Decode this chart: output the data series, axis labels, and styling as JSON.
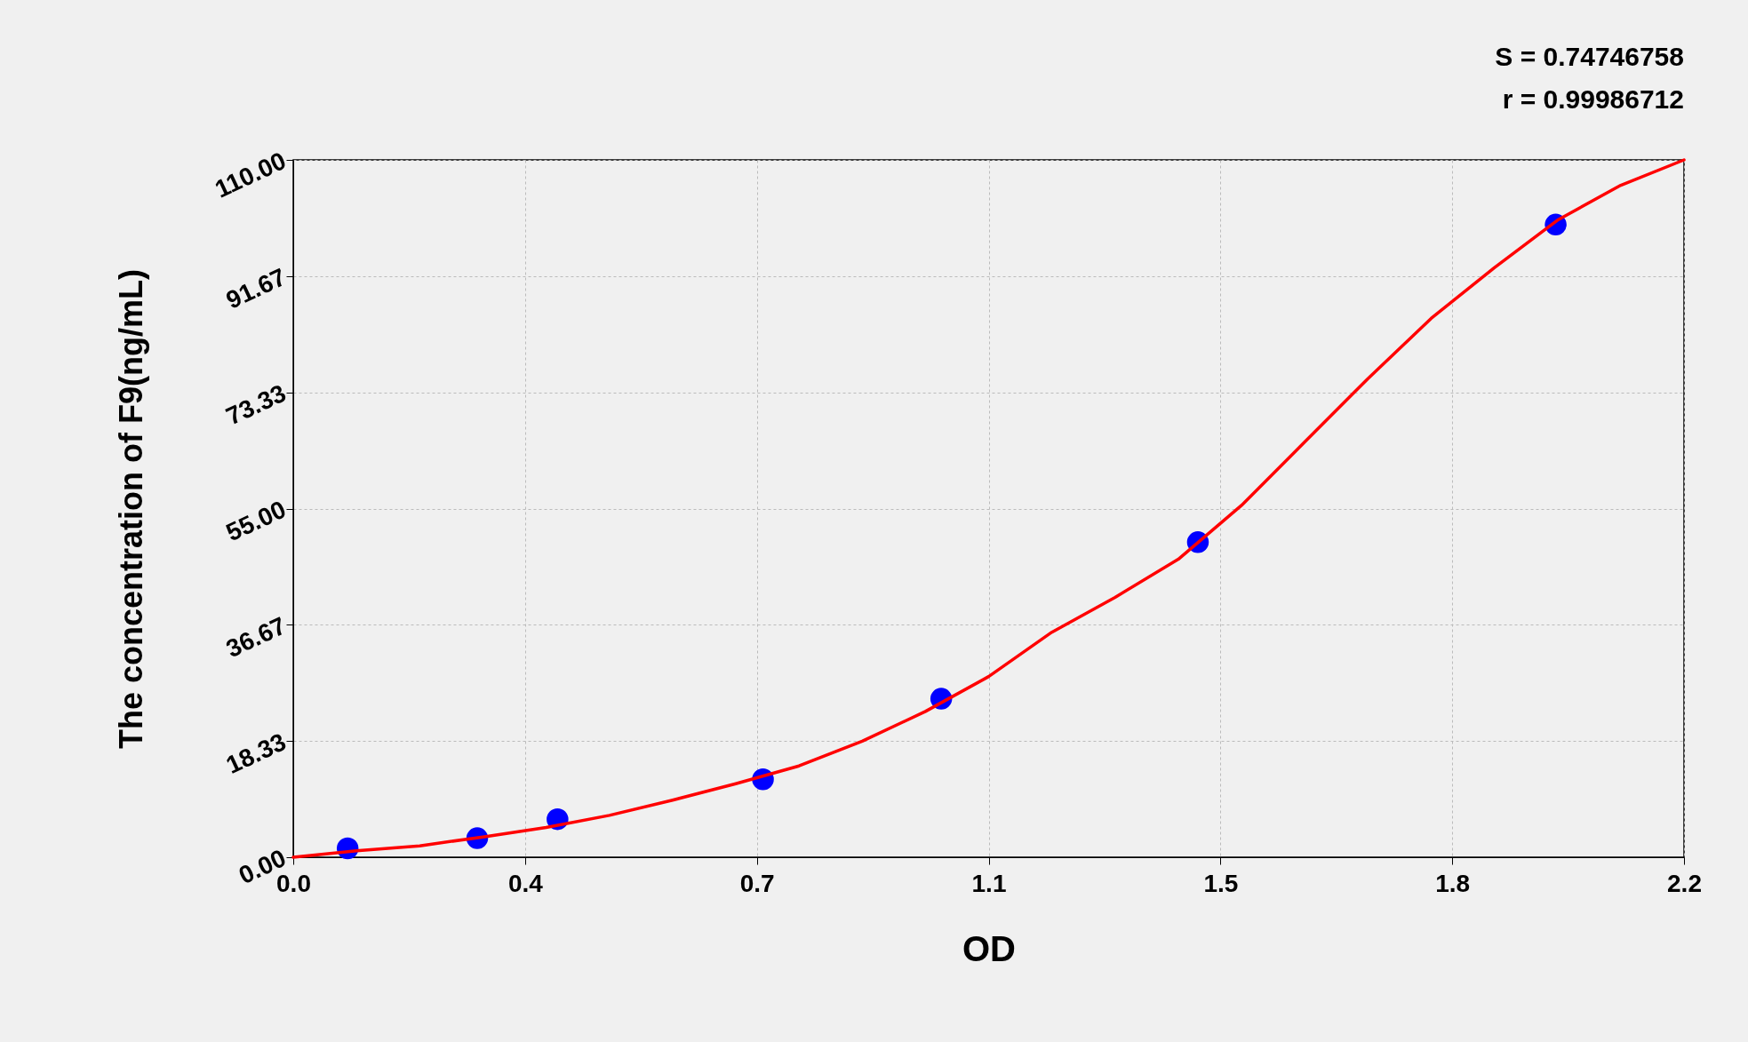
{
  "chart_data": {
    "type": "scatter",
    "xlabel": "OD",
    "ylabel": "The concentration of F9(ng/mL)",
    "annotations": [
      "S = 0.74746758",
      "r = 0.99986712"
    ],
    "xlim": [
      0,
      2.2
    ],
    "ylim": [
      0,
      110
    ],
    "xticks": [
      {
        "value": 0,
        "label": "0.0"
      },
      {
        "value": 0.3667,
        "label": "0.4"
      },
      {
        "value": 0.7333,
        "label": "0.7"
      },
      {
        "value": 1.1,
        "label": "1.1"
      },
      {
        "value": 1.4667,
        "label": "1.5"
      },
      {
        "value": 1.8333,
        "label": "1.8"
      },
      {
        "value": 2.2,
        "label": "2.2"
      }
    ],
    "yticks": [
      {
        "value": 0,
        "label": "0.00"
      },
      18.33,
      36.67,
      {
        "value": 55,
        "label": "55.00"
      },
      73.33,
      91.67,
      {
        "value": 110,
        "label": "110.00"
      }
    ],
    "grid": true,
    "series": [
      {
        "type": "line",
        "color": "#ff0000",
        "line_style": "solid",
        "marker": "none",
        "x": [
          0,
          0.1,
          0.2,
          0.3,
          0.4,
          0.5,
          0.6,
          0.7,
          0.8,
          0.9,
          1.0,
          1.1,
          1.2,
          1.3,
          1.4,
          1.5,
          1.6,
          1.7,
          1.8,
          1.9,
          2.0,
          2.1,
          2.2
        ],
        "values": [
          0,
          1.0,
          1.8,
          3.2,
          4.7,
          6.6,
          9.0,
          11.6,
          14.4,
          18.3,
          23.0,
          28.5,
          35.5,
          41.0,
          47.0,
          55.5,
          65.5,
          75.5,
          85.0,
          93.0,
          100.5,
          106.0,
          110
        ]
      },
      {
        "color": "#0000ff",
        "marker": "circle",
        "x": [
          0.086,
          0.291,
          0.418,
          0.743,
          1.025,
          1.431,
          1.997
        ],
        "values": [
          1.4,
          3.0,
          6.0,
          12.3,
          25.0,
          49.7,
          99.8
        ]
      }
    ]
  }
}
